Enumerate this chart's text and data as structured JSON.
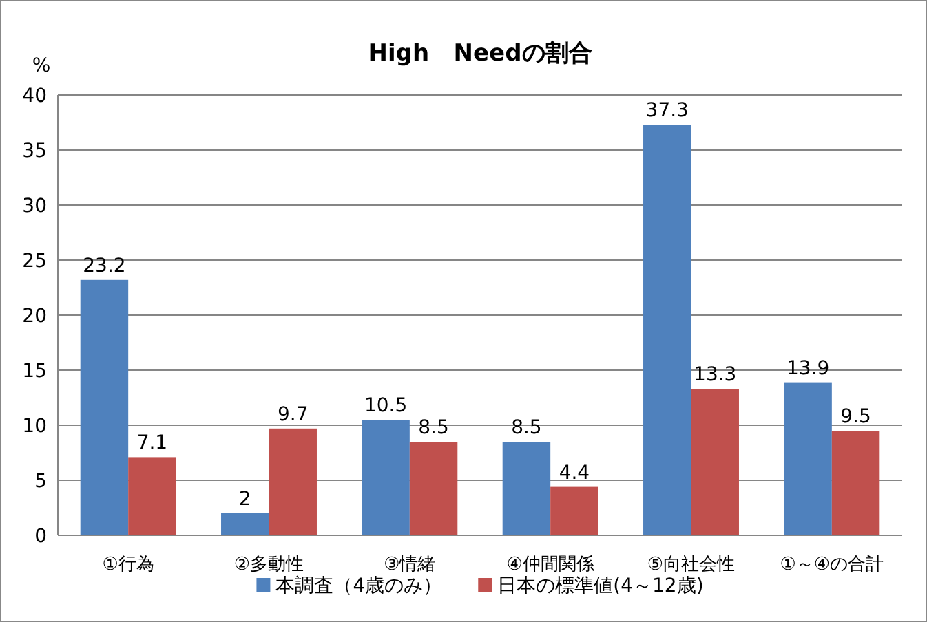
{
  "chart_data": {
    "type": "bar",
    "title": "High   Needの割合",
    "ylabel": "%",
    "categories": [
      "①行為",
      "②多動性",
      "③情緒",
      "④仲間関係",
      "⑤向社会性",
      "①～④の合計"
    ],
    "series": [
      {
        "name": "本調査（4歳のみ）",
        "color": "#4f81bd",
        "values": [
          23.2,
          2,
          10.5,
          8.5,
          37.3,
          13.9
        ]
      },
      {
        "name": "日本の標準値(4～12歳)",
        "color": "#c0504d",
        "values": [
          7.1,
          9.7,
          8.5,
          4.4,
          13.3,
          9.5
        ]
      }
    ],
    "ylim": [
      0,
      40
    ],
    "yticks": [
      0,
      5,
      10,
      15,
      20,
      25,
      30,
      35,
      40
    ],
    "grid": "y",
    "legend": "bottom",
    "data_labels": true
  }
}
